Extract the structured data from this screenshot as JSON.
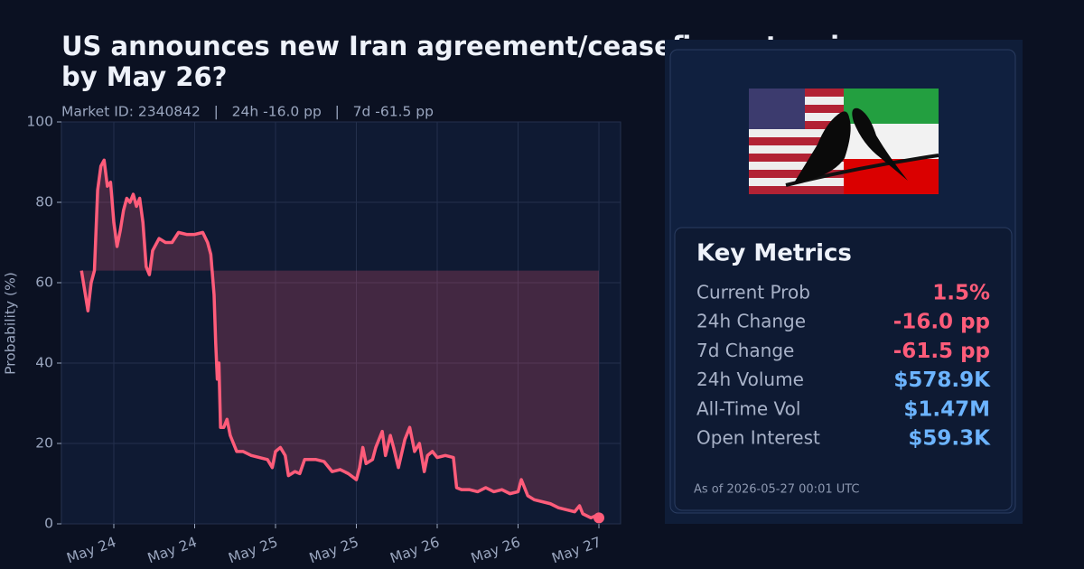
{
  "chart_data": {
    "type": "line",
    "title_lines": [
      "US announces new Iran agreement/ceasefire extension",
      "by May 26?"
    ],
    "subtitle": "Market ID: 2340842   |   24h -16.0 pp   |   7d -61.5 pp",
    "y_label": "Probability (%)",
    "color": "#ff5c7a",
    "fill_baseline": 63,
    "grid": true,
    "xlim": [
      23.676,
      27.134
    ],
    "ylim": [
      0,
      100
    ],
    "yticks": [
      0,
      20,
      40,
      60,
      80,
      100
    ],
    "xticks": [
      {
        "value": 24.0,
        "label": "May 24"
      },
      {
        "value": 24.5,
        "label": "May 24"
      },
      {
        "value": 25.0,
        "label": "May 25"
      },
      {
        "value": 25.5,
        "label": "May 25"
      },
      {
        "value": 26.0,
        "label": "May 26"
      },
      {
        "value": 26.5,
        "label": "May 26"
      },
      {
        "value": 27.0,
        "label": "May 27"
      }
    ],
    "x": [
      23.8,
      23.82,
      23.84,
      23.86,
      23.88,
      23.9,
      23.92,
      23.94,
      23.96,
      23.98,
      24.0,
      24.02,
      24.04,
      24.06,
      24.08,
      24.1,
      24.12,
      24.14,
      24.16,
      24.18,
      24.2,
      24.22,
      24.24,
      24.28,
      24.32,
      24.36,
      24.4,
      24.45,
      24.5,
      24.55,
      24.58,
      24.6,
      24.62,
      24.63,
      24.64,
      24.65,
      24.66,
      24.68,
      24.7,
      24.72,
      24.76,
      24.8,
      24.85,
      24.9,
      24.95,
      24.98,
      25.0,
      25.03,
      25.06,
      25.08,
      25.12,
      25.15,
      25.18,
      25.25,
      25.3,
      25.35,
      25.4,
      25.45,
      25.5,
      25.52,
      25.54,
      25.56,
      25.6,
      25.62,
      25.66,
      25.68,
      25.71,
      25.73,
      25.76,
      25.8,
      25.83,
      25.86,
      25.89,
      25.92,
      25.94,
      25.97,
      26.0,
      26.05,
      26.1,
      26.12,
      26.15,
      26.2,
      26.25,
      26.3,
      26.35,
      26.4,
      26.45,
      26.5,
      26.52,
      26.56,
      26.6,
      26.7,
      26.75,
      26.8,
      26.85,
      26.88,
      26.9,
      26.95,
      26.98,
      27.0
    ],
    "values": [
      63,
      58,
      53,
      60,
      63,
      83,
      89,
      90.5,
      84,
      85,
      75,
      69,
      73,
      78,
      81,
      80,
      82,
      79,
      81,
      75,
      64,
      62,
      68,
      71,
      70,
      70,
      72.5,
      72,
      72,
      72.5,
      70,
      67,
      57,
      45,
      36,
      40,
      24,
      24,
      26,
      22,
      18,
      18,
      17,
      16.5,
      16,
      14,
      18,
      19,
      17,
      12,
      13,
      12.5,
      16,
      16,
      15.5,
      13,
      13.5,
      12.5,
      11,
      14,
      19,
      15,
      16,
      19,
      23,
      17,
      22,
      19,
      14,
      21,
      24,
      18,
      20,
      13,
      17,
      18,
      16.5,
      17,
      16.5,
      9,
      8.5,
      8.5,
      8,
      9,
      8,
      8.5,
      7.5,
      8,
      11,
      7,
      6,
      5,
      4,
      3.5,
      3,
      4.5,
      2.5,
      1.5,
      2,
      1.5
    ]
  },
  "panel": {
    "metrics_title": "Key Metrics",
    "metrics": [
      {
        "label": "Current Prob",
        "value": "1.5%",
        "color": "#ff5c7a"
      },
      {
        "label": "24h Change",
        "value": "-16.0 pp",
        "color": "#ff5c7a"
      },
      {
        "label": "7d Change",
        "value": "-61.5 pp",
        "color": "#ff5c7a"
      },
      {
        "label": "24h Volume",
        "value": "$578.9K",
        "color": "#6cb4ff"
      },
      {
        "label": "All-Time Vol",
        "value": "$1.47M",
        "color": "#6cb4ff"
      },
      {
        "label": "Open Interest",
        "value": "$59.3K",
        "color": "#6cb4ff"
      }
    ],
    "as_of": "As of 2026-05-27 00:01 UTC"
  }
}
